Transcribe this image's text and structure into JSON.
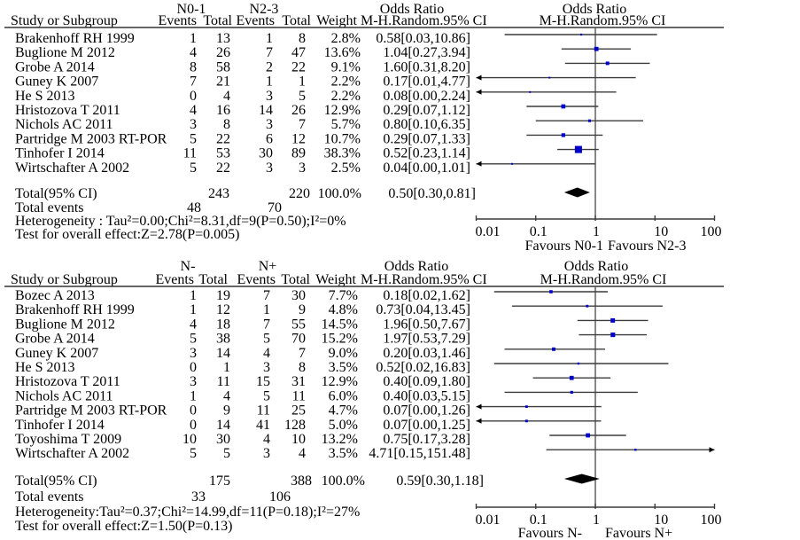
{
  "panels": [
    {
      "header": {
        "group1": "N0-1",
        "group2": "N2-3",
        "study": "Study or Subgroup",
        "events1": "Events",
        "total1": "Total",
        "events2": "Events",
        "total2": "Total",
        "weight": "Weight",
        "or_title": "Odds Ratio",
        "or_method": "M-H.Random.95% CI"
      },
      "studies": [
        {
          "name": "Brakenhoff RH 1999",
          "events1": "1",
          "total1": "13",
          "events2": "1",
          "total2": "8",
          "weight": "2.8%",
          "or_ci": "0.58[0.03,10.86]"
        },
        {
          "name": "Buglione M 2012",
          "events1": "4",
          "total1": "26",
          "events2": "7",
          "total2": "47",
          "weight": "13.6%",
          "or_ci": "1.04[0.27,3.94]"
        },
        {
          "name": "Grobe A 2014",
          "events1": "8",
          "total1": "58",
          "events2": "2",
          "total2": "22",
          "weight": "9.1%",
          "or_ci": "1.60[0.31,8.20]"
        },
        {
          "name": "Guney K 2007",
          "events1": "7",
          "total1": "21",
          "events2": "1",
          "total2": "1",
          "weight": "2.2%",
          "or_ci": "0.17[0.01,4.77]"
        },
        {
          "name": "He S 2013",
          "events1": "0",
          "total1": "4",
          "events2": "3",
          "total2": "5",
          "weight": "2.2%",
          "or_ci": "0.08[0.00,2.24]"
        },
        {
          "name": "Hristozova T 2011",
          "events1": "4",
          "total1": "16",
          "events2": "14",
          "total2": "26",
          "weight": "12.9%",
          "or_ci": "0.29[0.07,1.12]"
        },
        {
          "name": "Nichols AC 2011",
          "events1": "3",
          "total1": "8",
          "events2": "3",
          "total2": "7",
          "weight": "5.7%",
          "or_ci": "0.80[0.10,6.35]"
        },
        {
          "name": "Partridge M 2003 RT-POR",
          "events1": "5",
          "total1": "22",
          "events2": "6",
          "total2": "12",
          "weight": "10.7%",
          "or_ci": "0.29[0.07,1.33]"
        },
        {
          "name": "Tinhofer I 2014",
          "events1": "11",
          "total1": "53",
          "events2": "30",
          "total2": "89",
          "weight": "38.3%",
          "or_ci": "0.52[0.23,1.14]"
        },
        {
          "name": "Wirtschafter A 2002",
          "events1": "5",
          "total1": "22",
          "events2": "3",
          "total2": "3",
          "weight": "2.5%",
          "or_ci": "0.04[0.00,1.01]"
        }
      ],
      "total": {
        "label": "Total(95% CI)",
        "total1": "243",
        "total2": "220",
        "weight": "100.0%",
        "or_ci": "0.50[0.30,0.81]"
      },
      "total_events": {
        "label": "Total events",
        "events1": "48",
        "events2": "70"
      },
      "heterogeneity": "Heterogeneity : Tau²=0.00;Chi²=8.31,df=9(P=0.50);I²=0%",
      "overall_effect": "Test for overall effect:Z=2.78(P=0.005)"
    },
    {
      "header": {
        "group1": "N-",
        "group2": "N+",
        "study": "Study or Subgroup",
        "events1": "Events",
        "total1": "Total",
        "events2": "Events",
        "total2": "Total",
        "weight": "Weight",
        "or_title": "Odds Ratio",
        "or_method": "M-H.Random.95% CI"
      },
      "studies": [
        {
          "name": "Bozec A 2013",
          "events1": "1",
          "total1": "19",
          "events2": "7",
          "total2": "30",
          "weight": "7.7%",
          "or_ci": "0.18[0.02,1.62]"
        },
        {
          "name": "Brakenhoff RH 1999",
          "events1": "1",
          "total1": "12",
          "events2": "1",
          "total2": "9",
          "weight": "4.8%",
          "or_ci": "0.73[0.04,13.45]"
        },
        {
          "name": "Buglione M 2012",
          "events1": "4",
          "total1": "18",
          "events2": "7",
          "total2": "55",
          "weight": "14.5%",
          "or_ci": "1.96[0.50,7.67]"
        },
        {
          "name": "Grobe A 2014",
          "events1": "5",
          "total1": "38",
          "events2": "5",
          "total2": "70",
          "weight": "15.2%",
          "or_ci": "1.97[0.53,7.29]"
        },
        {
          "name": "Guney K 2007",
          "events1": "3",
          "total1": "14",
          "events2": "4",
          "total2": "7",
          "weight": "9.0%",
          "or_ci": "0.20[0.03,1.46]"
        },
        {
          "name": "He S 2013",
          "events1": "0",
          "total1": "1",
          "events2": "3",
          "total2": "8",
          "weight": "3.5%",
          "or_ci": "0.52[0.02,16.83]"
        },
        {
          "name": "Hristozova T 2011",
          "events1": "3",
          "total1": "11",
          "events2": "15",
          "total2": "31",
          "weight": "12.9%",
          "or_ci": "0.40[0.09,1.80]"
        },
        {
          "name": "Nichols AC 2011",
          "events1": "1",
          "total1": "4",
          "events2": "5",
          "total2": "11",
          "weight": "6.0%",
          "or_ci": "0.40[0.03,5.15]"
        },
        {
          "name": "Partridge M 2003 RT-POR",
          "events1": "0",
          "total1": "9",
          "events2": "11",
          "total2": "25",
          "weight": "4.7%",
          "or_ci": "0.07[0.00,1.26]"
        },
        {
          "name": "Tinhofer I 2014",
          "events1": "0",
          "total1": "14",
          "events2": "41",
          "total2": "128",
          "weight": "5.0%",
          "or_ci": "0.07[0.00,1.25]"
        },
        {
          "name": "Toyoshima T 2009",
          "events1": "10",
          "total1": "30",
          "events2": "4",
          "total2": "10",
          "weight": "13.2%",
          "or_ci": "0.75[0.17,3.28]"
        },
        {
          "name": "Wirtschafter A 2002",
          "events1": "5",
          "total1": "5",
          "events2": "3",
          "total2": "4",
          "weight": "3.5%",
          "or_ci": "4.71[0.15,151.48]"
        }
      ],
      "total": {
        "label": "Total(95% CI)",
        "total1": "175",
        "total2": "388",
        "weight": "100.0%",
        "or_ci": "0.59[0.30,1.18]"
      },
      "total_events": {
        "label": "Total events",
        "events1": "33",
        "events2": "106"
      },
      "heterogeneity": "Heterogeneity:Tau²=0.37;Chi²=14.99,df=11(P=0.18);I²=27%",
      "overall_effect": "Test for overall effect:Z=1.50(P=0.13)"
    }
  ],
  "colors": {
    "marker": "#0000cc",
    "ci_line": "#3c3c3c",
    "diamond": "#000000",
    "reference_line": "#555555"
  },
  "chart_data": [
    {
      "type": "scatter",
      "title": "Odds Ratio",
      "subtitle": "M-H.Random.95% CI",
      "x_scale": "log",
      "xlim": [
        0.01,
        100
      ],
      "xticks": [
        0.01,
        0.1,
        1,
        10,
        100
      ],
      "xtick_labels": [
        "0.01",
        "0.1",
        "1",
        "10",
        "100"
      ],
      "reference_line": 1,
      "xlabel_left": "Favours N0-1",
      "xlabel_right": "Favours N2-3",
      "points": [
        {
          "or": 0.58,
          "lower": 0.03,
          "upper": 10.86,
          "weight": 2.8
        },
        {
          "or": 1.04,
          "lower": 0.27,
          "upper": 3.94,
          "weight": 13.6
        },
        {
          "or": 1.6,
          "lower": 0.31,
          "upper": 8.2,
          "weight": 9.1
        },
        {
          "or": 0.17,
          "lower": 0.01,
          "upper": 4.77,
          "weight": 2.2
        },
        {
          "or": 0.08,
          "lower": 0.0,
          "upper": 2.24,
          "weight": 2.2
        },
        {
          "or": 0.29,
          "lower": 0.07,
          "upper": 1.12,
          "weight": 12.9
        },
        {
          "or": 0.8,
          "lower": 0.1,
          "upper": 6.35,
          "weight": 5.7
        },
        {
          "or": 0.29,
          "lower": 0.07,
          "upper": 1.33,
          "weight": 10.7
        },
        {
          "or": 0.52,
          "lower": 0.23,
          "upper": 1.14,
          "weight": 38.3
        },
        {
          "or": 0.04,
          "lower": 0.0,
          "upper": 1.01,
          "weight": 2.5
        }
      ],
      "pooled": {
        "or": 0.5,
        "lower": 0.3,
        "upper": 0.81
      }
    },
    {
      "type": "scatter",
      "title": "Odds Ratio",
      "subtitle": "M-H.Random.95% CI",
      "x_scale": "log",
      "xlim": [
        0.01,
        100
      ],
      "xticks": [
        0.01,
        0.1,
        1,
        10,
        100
      ],
      "xtick_labels": [
        "0.01",
        "0.1",
        "1",
        "10",
        "100"
      ],
      "reference_line": 1,
      "xlabel_left": "Favours N-",
      "xlabel_right": "Favours N+",
      "points": [
        {
          "or": 0.18,
          "lower": 0.02,
          "upper": 1.62,
          "weight": 7.7
        },
        {
          "or": 0.73,
          "lower": 0.04,
          "upper": 13.45,
          "weight": 4.8
        },
        {
          "or": 1.96,
          "lower": 0.5,
          "upper": 7.67,
          "weight": 14.5
        },
        {
          "or": 1.97,
          "lower": 0.53,
          "upper": 7.29,
          "weight": 15.2
        },
        {
          "or": 0.2,
          "lower": 0.03,
          "upper": 1.46,
          "weight": 9.0
        },
        {
          "or": 0.52,
          "lower": 0.02,
          "upper": 16.83,
          "weight": 3.5
        },
        {
          "or": 0.4,
          "lower": 0.09,
          "upper": 1.8,
          "weight": 12.9
        },
        {
          "or": 0.4,
          "lower": 0.03,
          "upper": 5.15,
          "weight": 6.0
        },
        {
          "or": 0.07,
          "lower": 0.0,
          "upper": 1.26,
          "weight": 4.7
        },
        {
          "or": 0.07,
          "lower": 0.0,
          "upper": 1.25,
          "weight": 5.0
        },
        {
          "or": 0.75,
          "lower": 0.17,
          "upper": 3.28,
          "weight": 13.2
        },
        {
          "or": 4.71,
          "lower": 0.15,
          "upper": 151.48,
          "weight": 3.5
        }
      ],
      "pooled": {
        "or": 0.59,
        "lower": 0.3,
        "upper": 1.18
      }
    }
  ]
}
